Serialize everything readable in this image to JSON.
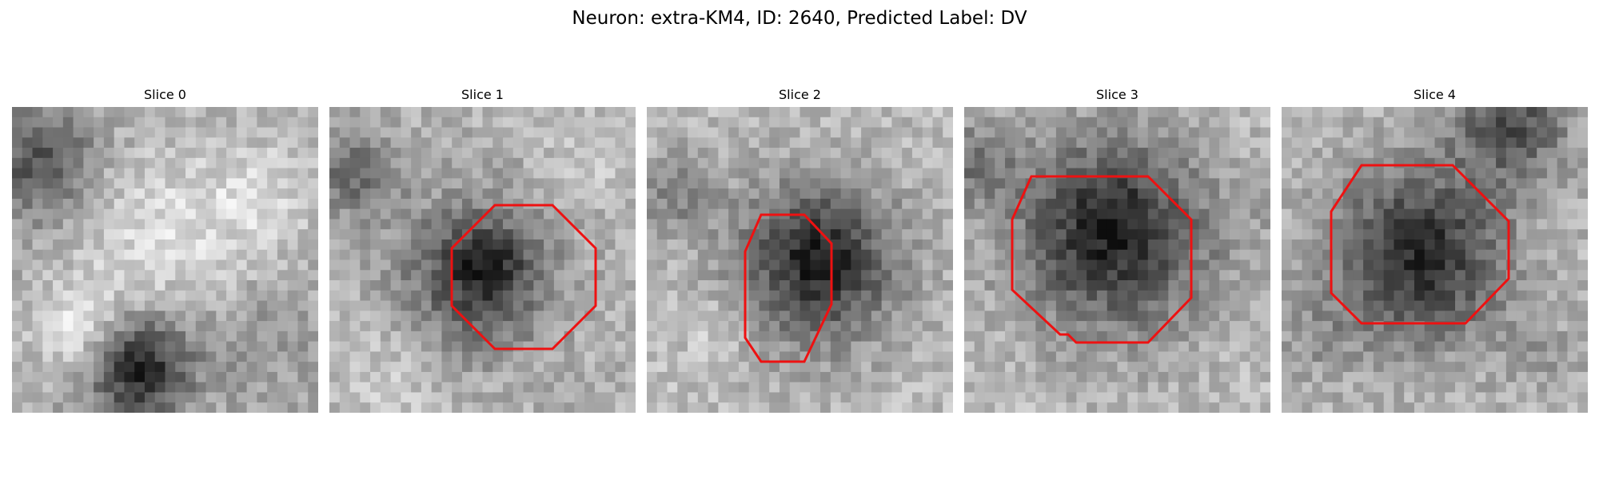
{
  "figure": {
    "title": "Neuron: extra-KM4, ID: 2640, Predicted Label: DV"
  },
  "outline_color": "#ee1111",
  "panels": [
    {
      "title": "Slice 0",
      "has_outline": false
    },
    {
      "title": "Slice 1",
      "has_outline": true
    },
    {
      "title": "Slice 2",
      "has_outline": true
    },
    {
      "title": "Slice 3",
      "has_outline": true
    },
    {
      "title": "Slice 4",
      "has_outline": true
    }
  ]
}
